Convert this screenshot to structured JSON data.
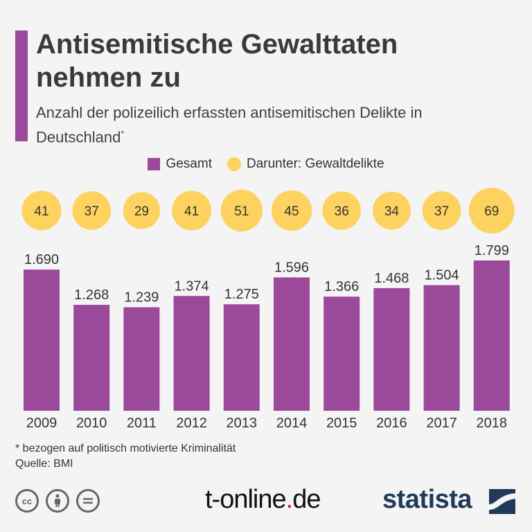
{
  "header": {
    "title": "Antisemitische Gewalttaten nehmen zu",
    "subtitle": "Anzahl der polizeilich erfassten antisemitischen Delikte in Deutschland",
    "subtitle_mark": "*"
  },
  "legend": {
    "gesamt": "Gesamt",
    "gewalt": "Darunter: Gewaltdelikte"
  },
  "colors": {
    "accent": "#9b4a9b",
    "bar": "#9b4a9b",
    "circle": "#fdd25f"
  },
  "chart_data": {
    "type": "bar",
    "title": "Antisemitische Gewalttaten nehmen zu",
    "subtitle": "Anzahl der polizeilich erfassten antisemitischen Delikte in Deutschland*",
    "categories": [
      "2009",
      "2010",
      "2011",
      "2012",
      "2013",
      "2014",
      "2015",
      "2016",
      "2017",
      "2018"
    ],
    "series": [
      {
        "name": "Gesamt",
        "values": [
          1690,
          1268,
          1239,
          1374,
          1275,
          1596,
          1366,
          1468,
          1504,
          1799
        ],
        "labels": [
          "1.690",
          "1.268",
          "1.239",
          "1.374",
          "1.275",
          "1.596",
          "1.366",
          "1.468",
          "1.504",
          "1.799"
        ]
      },
      {
        "name": "Darunter: Gewaltdelikte",
        "values": [
          41,
          37,
          29,
          41,
          51,
          45,
          36,
          34,
          37,
          69
        ],
        "labels": [
          "41",
          "37",
          "29",
          "41",
          "51",
          "45",
          "36",
          "34",
          "37",
          "69"
        ]
      }
    ],
    "ylim": [
      0,
      1799
    ],
    "grid": false,
    "legend_position": "top-center"
  },
  "footer": {
    "note": "* bezogen auf politisch motivierte Kriminalität",
    "source": "Quelle: BMI",
    "brand_left_a": "t-online",
    "brand_left_dot": ".",
    "brand_left_b": "de",
    "brand_right": "statista",
    "cc_icons": [
      "cc-icon",
      "attribution-icon",
      "no-derivatives-icon"
    ]
  }
}
